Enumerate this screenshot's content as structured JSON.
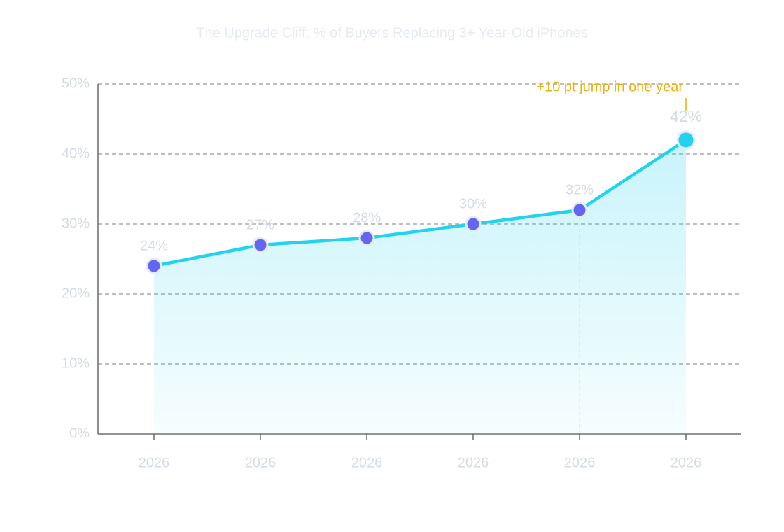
{
  "chart_data": {
    "type": "line",
    "title": "The Upgrade Cliff: % of Buyers Replacing 3+ Year-Old iPhones",
    "categories": [
      "2026",
      "2026",
      "2026",
      "2026",
      "2026",
      "2026"
    ],
    "values": [
      24,
      27,
      28,
      30,
      32,
      42
    ],
    "value_labels": [
      "24%",
      "27%",
      "28%",
      "30%",
      "32%",
      "42%"
    ],
    "color": "#22d3ee",
    "marker_colors": [
      "#6366f1",
      "#6366f1",
      "#6366f1",
      "#6366f1",
      "#6366f1",
      "#22d3ee"
    ],
    "annotation": "+10 pt jump in one year",
    "annotation_color": "#eab308",
    "ylim": [
      0,
      50
    ],
    "yticks": [
      {
        "value": 0,
        "label": "0%"
      },
      {
        "value": 10,
        "label": "10%"
      },
      {
        "value": 20,
        "label": "20%"
      },
      {
        "value": 30,
        "label": "30%"
      },
      {
        "value": 40,
        "label": "40%"
      },
      {
        "value": 50,
        "label": "50%"
      }
    ],
    "grid": true
  }
}
